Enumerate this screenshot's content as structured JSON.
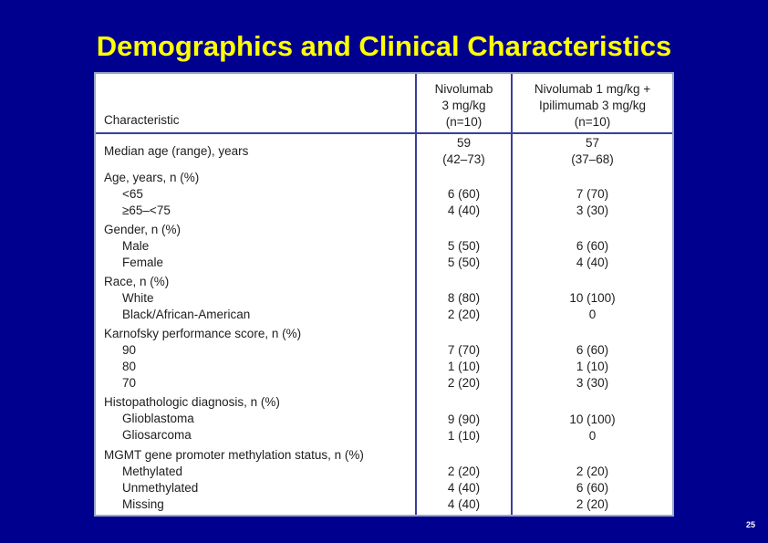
{
  "title": "Demographics and Clinical Characteristics",
  "page_number": "25",
  "table": {
    "header": {
      "characteristic": "Characteristic",
      "col1": [
        "Nivolumab",
        "3 mg/kg",
        "(n=10)"
      ],
      "col2": [
        "Nivolumab 1 mg/kg +",
        "Ipilimumab 3 mg/kg",
        "(n=10)"
      ]
    },
    "rows": [
      {
        "labels": [
          "Median age (range), years"
        ],
        "col1": [
          "59",
          "(42–73)"
        ],
        "col2": [
          "57",
          "(37–68)"
        ]
      },
      {
        "labels": [
          "Age, years, n (%)",
          "<65",
          "≥65–<75"
        ],
        "col1": [
          "6 (60)",
          "4 (40)"
        ],
        "col2": [
          "7 (70)",
          "3 (30)"
        ]
      },
      {
        "labels": [
          "Gender, n (%)",
          "Male",
          "Female"
        ],
        "col1": [
          "5 (50)",
          "5 (50)"
        ],
        "col2": [
          "6 (60)",
          "4 (40)"
        ]
      },
      {
        "labels": [
          "Race, n (%)",
          "White",
          "Black/African-American"
        ],
        "col1": [
          "8 (80)",
          "2 (20)"
        ],
        "col2": [
          "10 (100)",
          "0"
        ]
      },
      {
        "labels": [
          "Karnofsky performance score, n (%)",
          "90",
          "80",
          "70"
        ],
        "col1": [
          "7 (70)",
          "1 (10)",
          "2 (20)"
        ],
        "col2": [
          "6 (60)",
          "1 (10)",
          "3 (30)"
        ]
      },
      {
        "labels": [
          "Histopathologic diagnosis, n (%)",
          "Glioblastoma",
          "Gliosarcoma"
        ],
        "col1": [
          "9 (90)",
          "1 (10)"
        ],
        "col2": [
          "10 (100)",
          "0"
        ]
      },
      {
        "labels": [
          "MGMT gene promoter methylation status, n (%)",
          "Methylated",
          "Unmethylated",
          "Missing"
        ],
        "col1": [
          "2 (20)",
          "4 (40)",
          "4 (40)"
        ],
        "col2": [
          "2 (20)",
          "6 (60)",
          "2 (20)"
        ]
      }
    ]
  }
}
